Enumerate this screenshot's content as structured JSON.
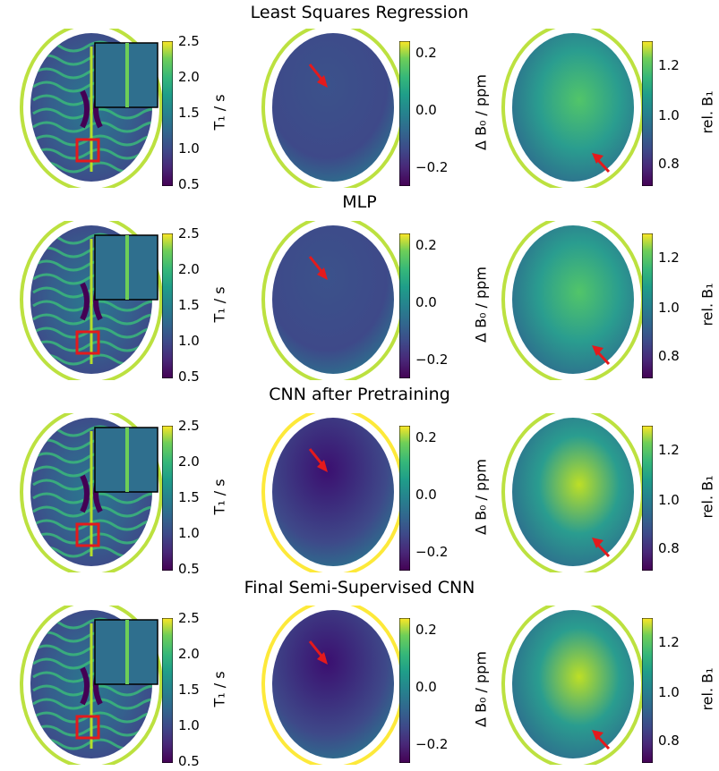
{
  "figure": {
    "rows": [
      {
        "title": "Least Squares Regression"
      },
      {
        "title": "MLP"
      },
      {
        "title": "CNN after Pretraining"
      },
      {
        "title": "Final Semi-Supervised CNN"
      }
    ],
    "colorbars": {
      "t1": {
        "label": "T₁ / s",
        "ticks": [
          "2.5",
          "2.0",
          "1.5",
          "1.0",
          "0.5"
        ]
      },
      "b0": {
        "label": "Δ B₀ / ppm",
        "ticks": [
          "0.2",
          "0.0",
          "−0.2"
        ]
      },
      "b1": {
        "label": "rel. B₁",
        "ticks": [
          "1.2",
          "1.0",
          "0.8"
        ]
      }
    },
    "colors": {
      "viridis_low": "#440154",
      "viridis_mid": "#21918c",
      "viridis_high": "#fde725",
      "marker_red": "#e41a1c"
    }
  }
}
